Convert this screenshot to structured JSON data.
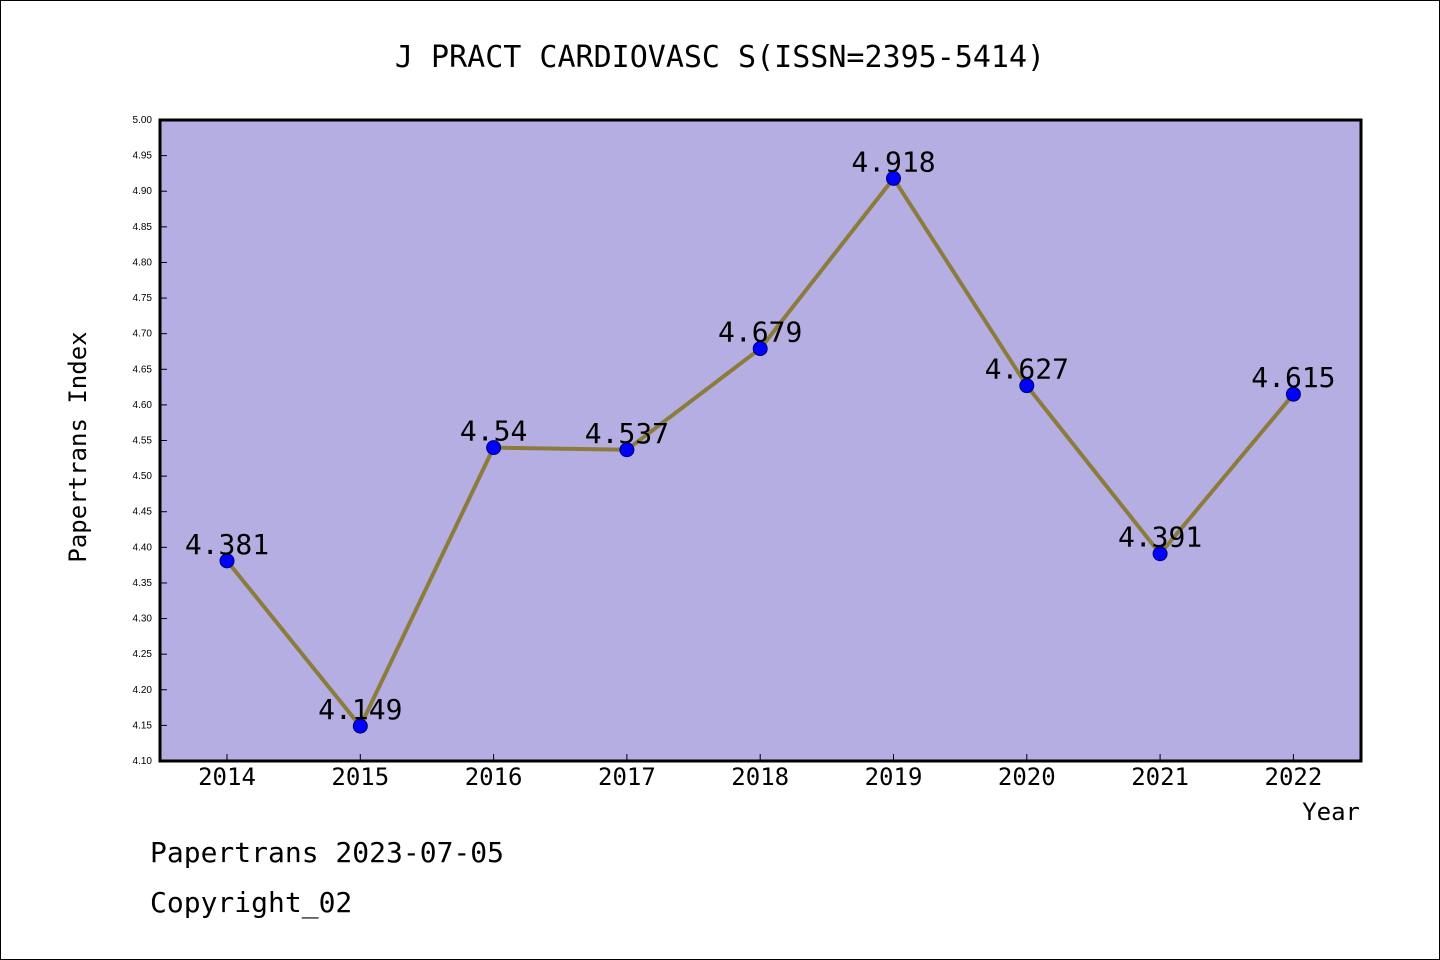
{
  "chart_data": {
    "type": "line",
    "title": "J PRACT CARDIOVASC S(ISSN=2395-5414)",
    "xlabel": "Year",
    "ylabel": "Papertrans Index",
    "categories": [
      "2014",
      "2015",
      "2016",
      "2017",
      "2018",
      "2019",
      "2020",
      "2021",
      "2022"
    ],
    "values": [
      4.381,
      4.149,
      4.54,
      4.537,
      4.679,
      4.918,
      4.627,
      4.391,
      4.615
    ],
    "data_labels": [
      "4.381",
      "4.149",
      "4.54",
      "4.537",
      "4.679",
      "4.918",
      "4.627",
      "4.391",
      "4.615"
    ],
    "ylim": [
      4.1,
      5.0
    ],
    "yticks": [
      "4.10",
      "4.15",
      "4.20",
      "4.25",
      "4.30",
      "4.35",
      "4.40",
      "4.45",
      "4.50",
      "4.55",
      "4.60",
      "4.65",
      "4.70",
      "4.75",
      "4.80",
      "4.85",
      "4.90",
      "4.95",
      "5.00"
    ],
    "grid": false,
    "colors": {
      "plot_background": "#b5aee2",
      "line": "#8c7c3c",
      "marker": "#0000ff",
      "axis": "#000000"
    }
  },
  "footer": {
    "line1": "Papertrans 2023-07-05",
    "line2": "Copyright_02"
  }
}
